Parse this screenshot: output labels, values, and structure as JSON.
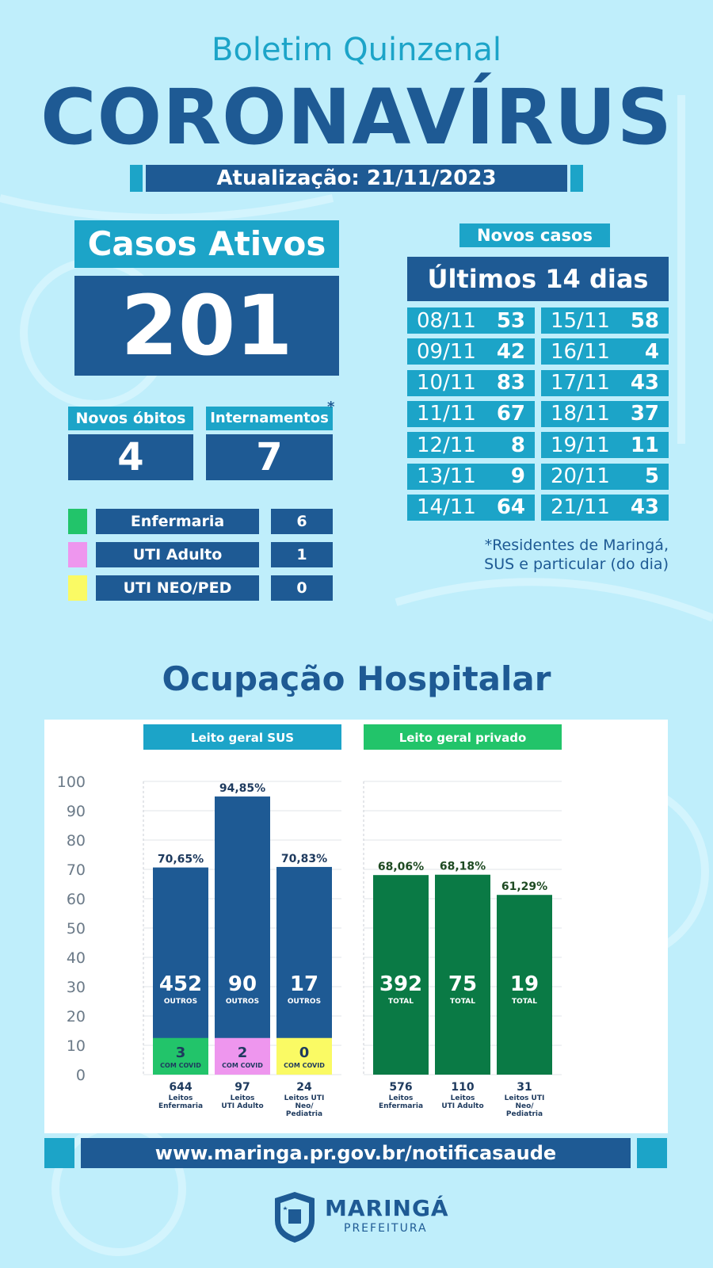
{
  "header": {
    "subtitle": "Boletim Quinzenal",
    "title": "CORONAVÍRUS",
    "update": "Atualização: 21/11/2023"
  },
  "active_cases": {
    "label": "Casos Ativos",
    "value": "201"
  },
  "deaths": {
    "label": "Novos óbitos",
    "value": "4"
  },
  "hospitalizations": {
    "label": "Internamentos",
    "asterisk": "*",
    "value": "7"
  },
  "breakdown": [
    {
      "label": "Enfermaria",
      "value": "6",
      "color": "#22c46a"
    },
    {
      "label": "UTI Adulto",
      "value": "1",
      "color": "#ee96ee"
    },
    {
      "label": "UTI NEO/PED",
      "value": "0",
      "color": "#fafa64"
    }
  ],
  "new_cases": {
    "label": "Novos casos",
    "period": "Últimos 14 dias",
    "left": [
      {
        "date": "08/11",
        "value": "53"
      },
      {
        "date": "09/11",
        "value": "42"
      },
      {
        "date": "10/11",
        "value": "83"
      },
      {
        "date": "11/11",
        "value": "67"
      },
      {
        "date": "12/11",
        "value": "8"
      },
      {
        "date": "13/11",
        "value": "9"
      },
      {
        "date": "14/11",
        "value": "64"
      }
    ],
    "right": [
      {
        "date": "15/11",
        "value": "58"
      },
      {
        "date": "16/11",
        "value": "4"
      },
      {
        "date": "17/11",
        "value": "43"
      },
      {
        "date": "18/11",
        "value": "37"
      },
      {
        "date": "19/11",
        "value": "11"
      },
      {
        "date": "20/11",
        "value": "5"
      },
      {
        "date": "21/11",
        "value": "43"
      }
    ],
    "note_line1": "*Residentes de Maringá,",
    "note_line2": "SUS e particular (do dia)"
  },
  "section_title": "Ocupação Hospitalar",
  "chart_data": {
    "type": "bar",
    "ylim": [
      0,
      100
    ],
    "yticks": [
      0,
      10,
      20,
      30,
      40,
      50,
      60,
      70,
      80,
      90,
      100
    ],
    "groups": [
      {
        "name": "Leito geral SUS",
        "header_color": "#1ca4c8",
        "bar_color": "#1e5a94",
        "bars": [
          {
            "pct_label": "70,65%",
            "value": 70.65,
            "main_value": "452",
            "main_label": "OUTROS",
            "covid_value": "3",
            "covid_label": "COM COVID",
            "covid_color": "#22c46a",
            "beds": "644",
            "bed_label": [
              "Leitos",
              "Enfermaria"
            ]
          },
          {
            "pct_label": "94,85%",
            "value": 94.85,
            "main_value": "90",
            "main_label": "OUTROS",
            "covid_value": "2",
            "covid_label": "COM COVID",
            "covid_color": "#ee96ee",
            "beds": "97",
            "bed_label": [
              "Leitos",
              "UTI Adulto"
            ]
          },
          {
            "pct_label": "70,83%",
            "value": 70.83,
            "main_value": "17",
            "main_label": "OUTROS",
            "covid_value": "0",
            "covid_label": "COM COVID",
            "covid_color": "#fafa64",
            "beds": "24",
            "bed_label": [
              "Leitos UTI",
              "Neo/",
              "Pediatria"
            ]
          }
        ]
      },
      {
        "name": "Leito geral privado",
        "header_color": "#22c46a",
        "bar_color": "#0a7a45",
        "bars": [
          {
            "pct_label": "68,06%",
            "value": 68.06,
            "main_value": "392",
            "main_label": "TOTAL",
            "beds": "576",
            "bed_label": [
              "Leitos",
              "Enfermaria"
            ]
          },
          {
            "pct_label": "68,18%",
            "value": 68.18,
            "main_value": "75",
            "main_label": "TOTAL",
            "beds": "110",
            "bed_label": [
              "Leitos",
              "UTI Adulto"
            ]
          },
          {
            "pct_label": "61,29%",
            "value": 61.29,
            "main_value": "19",
            "main_label": "TOTAL",
            "beds": "31",
            "bed_label": [
              "Leitos UTI",
              "Neo/",
              "Pediatria"
            ]
          }
        ]
      }
    ]
  },
  "footer": {
    "url": "www.maringa.pr.gov.br/notificasaude",
    "logo_name": "MARINGÁ",
    "logo_sub": "PREFEITURA"
  }
}
